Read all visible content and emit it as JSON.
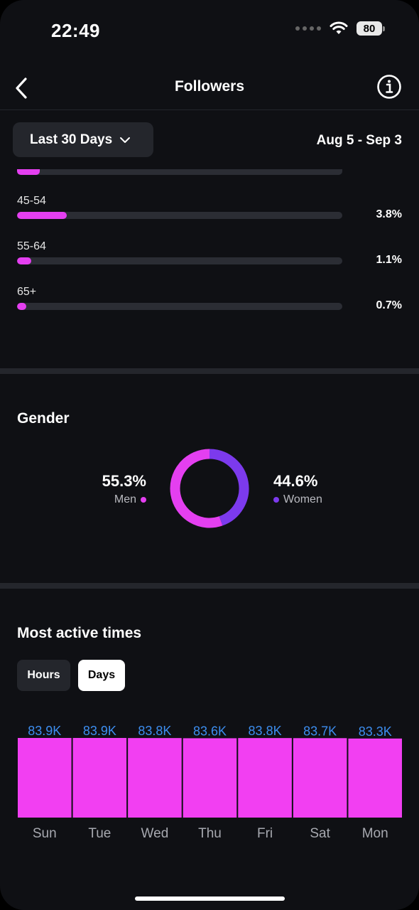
{
  "status_bar": {
    "time": "22:49",
    "battery": "80"
  },
  "nav": {
    "title": "Followers"
  },
  "filter": {
    "label": "Last 30 Days",
    "date_range": "Aug 5 - Sep 3"
  },
  "age_groups": [
    {
      "label": "45-54",
      "percent_text": "3.8%",
      "percent": 3.8
    },
    {
      "label": "55-64",
      "percent_text": "1.1%",
      "percent": 1.1
    },
    {
      "label": "65+",
      "percent_text": "0.7%",
      "percent": 0.7
    }
  ],
  "gender": {
    "title": "Gender",
    "men": {
      "percent_text": "55.3%",
      "label": "Men",
      "value": 55.3,
      "color": "#e43ff0"
    },
    "women": {
      "percent_text": "44.6%",
      "label": "Women",
      "value": 44.6,
      "color": "#7c3aed"
    }
  },
  "active_times": {
    "title": "Most active times",
    "tabs": {
      "hours": "Hours",
      "days": "Days"
    },
    "selected_tab": "Days"
  },
  "chart_data": {
    "type": "bar",
    "categories": [
      "Sun",
      "Tue",
      "Wed",
      "Thu",
      "Fri",
      "Sat",
      "Mon"
    ],
    "values": [
      83900,
      83900,
      83800,
      83600,
      83800,
      83700,
      83300
    ],
    "value_labels": [
      "83.9K",
      "83.9K",
      "83.8K",
      "83.6K",
      "83.8K",
      "83.7K",
      "83.3K"
    ],
    "bar_color": "#f23ff2",
    "label_color": "#3d8ef0"
  },
  "colors": {
    "accent": "#e43ff0",
    "women": "#7c3aed",
    "background": "#0f1014"
  }
}
